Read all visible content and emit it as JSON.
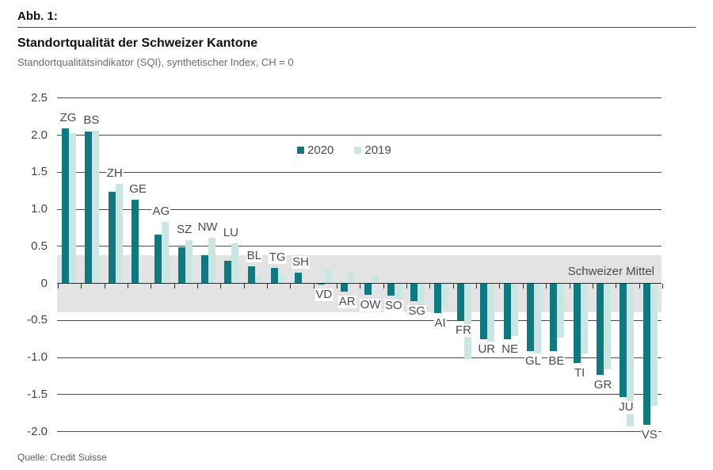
{
  "figure": {
    "label": "Abb. 1:",
    "title": "Standortqualität der Schweizer Kantone",
    "subtitle": "Standortqualitätsindikator (SQI), synthetischer Index, CH = 0",
    "source": "Quelle: Credit Suisse"
  },
  "chart_data": {
    "type": "bar",
    "title": "Standortqualität der Schweizer Kantone",
    "subtitle": "Standortqualitätsindikator (SQI), synthetischer Index, CH = 0",
    "categories": [
      "ZG",
      "BS",
      "ZH",
      "GE",
      "AG",
      "SZ",
      "NW",
      "LU",
      "BL",
      "TG",
      "SH",
      "VD",
      "AR",
      "OW",
      "SO",
      "SG",
      "AI",
      "FR",
      "UR",
      "NE",
      "GL",
      "BE",
      "TI",
      "GR",
      "JU",
      "VS"
    ],
    "series": [
      {
        "name": "2020",
        "color": "#0E7980",
        "values": [
          2.09,
          2.05,
          1.24,
          1.13,
          0.66,
          0.49,
          0.38,
          0.3,
          0.23,
          0.21,
          0.14,
          -0.02,
          -0.11,
          -0.16,
          -0.17,
          -0.24,
          -0.4,
          -0.5,
          -0.75,
          -0.75,
          -0.91,
          -0.91,
          -1.07,
          -1.23,
          -1.54,
          -1.91
        ]
      },
      {
        "name": "2019",
        "color": "#C9E6E3",
        "values": [
          2.03,
          2.06,
          1.34,
          null,
          0.83,
          0.58,
          0.61,
          0.54,
          0.09,
          0.12,
          null,
          0.19,
          0.16,
          0.11,
          -0.3,
          -0.29,
          -0.32,
          -1.02,
          -0.79,
          -0.71,
          -0.95,
          -0.73,
          -0.95,
          -1.16,
          -1.93,
          -1.65
        ]
      }
    ],
    "xlabel": "",
    "ylabel": "",
    "ytick_labels": [
      "2.5",
      "2.0",
      "1.5",
      "1.0",
      "0.5",
      "0",
      "-0.5",
      "-1.0",
      "-1.5",
      "-2.0"
    ],
    "ylim": [
      -2.25,
      2.6
    ],
    "grid": true,
    "legend_position": "inside-top-right",
    "band": {
      "label": "Schweizer Mittel",
      "from": 0.38,
      "to": -0.39,
      "color": "#E3E3E3"
    }
  }
}
